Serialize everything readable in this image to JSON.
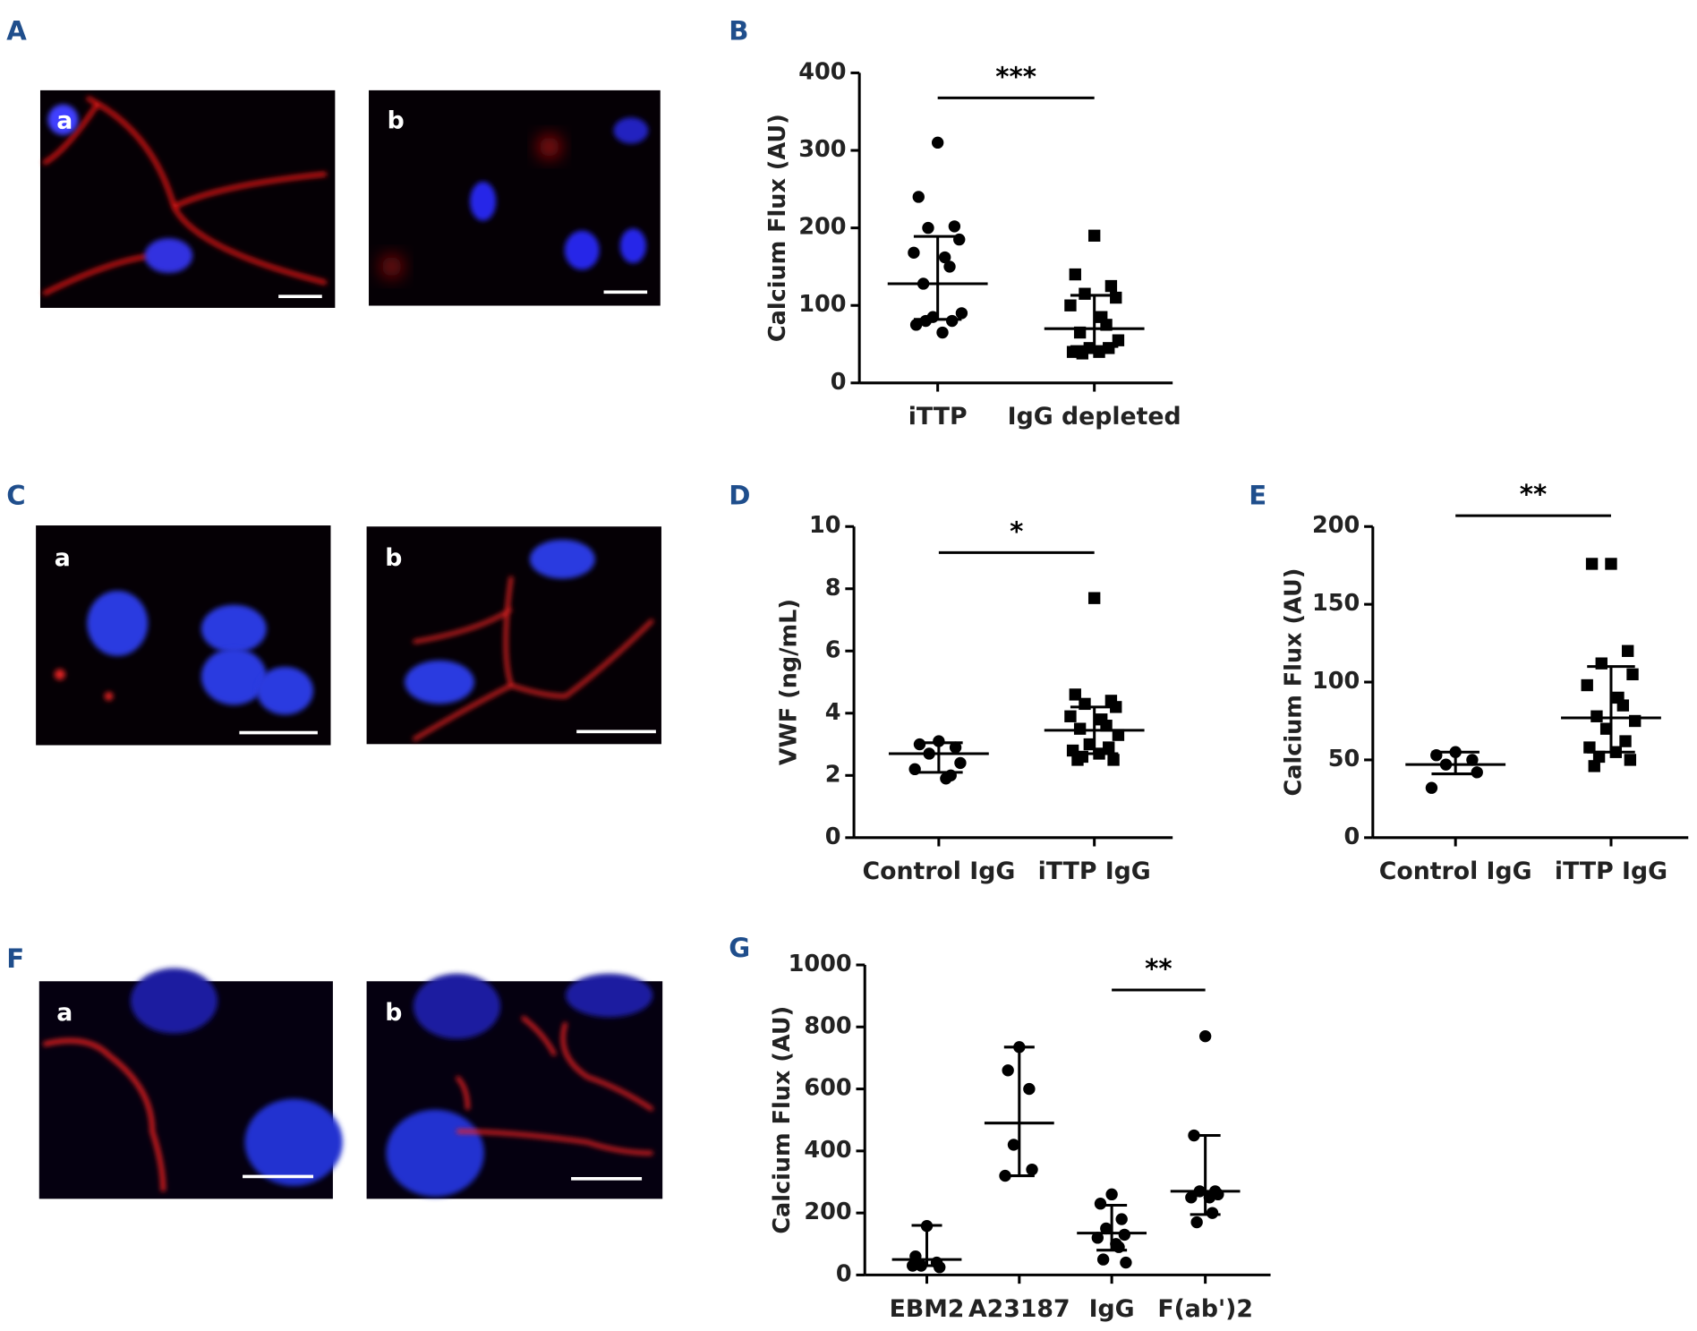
{
  "panels": {
    "letters": [
      "A",
      "B",
      "C",
      "D",
      "E",
      "F",
      "G"
    ],
    "image_labels": [
      [
        "a",
        "b"
      ],
      [
        "a",
        "b"
      ],
      [
        "a",
        "b"
      ]
    ]
  },
  "chart_data": [
    {
      "type": "dot",
      "ylabel": "Calcium Flux (AU)",
      "ylim": [
        0,
        400
      ],
      "yticks": [
        0,
        100,
        200,
        300,
        400
      ],
      "significance": {
        "text": "***",
        "between": [
          "iTTP",
          "IgG depleted"
        ]
      },
      "groups": [
        {
          "name": "iTTP",
          "marker": "circle",
          "color": "#000000",
          "values": [
            310,
            240,
            202,
            200,
            185,
            168,
            162,
            150,
            128,
            90,
            85,
            80,
            75,
            65,
            80
          ],
          "center": 128,
          "upper": 189,
          "lower": 82
        },
        {
          "name": "IgG depleted",
          "marker": "square",
          "color": "#000000",
          "values": [
            190,
            140,
            125,
            115,
            110,
            100,
            85,
            75,
            65,
            55,
            45,
            45,
            40,
            40,
            38
          ],
          "center": 70,
          "upper": 113,
          "lower": 47
        }
      ]
    },
    {
      "type": "dot",
      "ylabel": "VWF (ng/mL)",
      "ylim": [
        0,
        10
      ],
      "yticks": [
        0,
        2,
        4,
        6,
        8,
        10
      ],
      "significance": {
        "text": "*",
        "between": [
          "Control IgG",
          "iTTP IgG"
        ]
      },
      "groups": [
        {
          "name": "Control IgG",
          "marker": "circle",
          "color": "#000000",
          "values": [
            3.1,
            3.0,
            2.9,
            2.7,
            2.4,
            2.2,
            1.9,
            2.0
          ],
          "center": 2.7,
          "upper": 3.05,
          "lower": 2.1
        },
        {
          "name": "iTTP IgG",
          "marker": "square",
          "color": "#000000",
          "values": [
            7.7,
            4.6,
            4.4,
            4.3,
            4.2,
            3.9,
            3.8,
            3.6,
            3.5,
            3.3,
            3.0,
            2.9,
            2.8,
            2.7,
            2.6,
            2.5,
            2.5
          ],
          "center": 3.45,
          "upper": 4.2,
          "lower": 2.7
        }
      ]
    },
    {
      "type": "dot",
      "ylabel": "Calcium Flux (AU)",
      "ylim": [
        0,
        200
      ],
      "yticks": [
        0,
        50,
        100,
        150,
        200
      ],
      "significance": {
        "text": "**",
        "between": [
          "Control IgG",
          "iTTP IgG"
        ]
      },
      "groups": [
        {
          "name": "Control IgG",
          "marker": "circle",
          "color": "#000000",
          "values": [
            55,
            53,
            50,
            47,
            42,
            32
          ],
          "center": 47,
          "upper": 55,
          "lower": 41
        },
        {
          "name": "iTTP IgG",
          "marker": "square",
          "color": "#000000",
          "values": [
            176,
            176,
            120,
            112,
            105,
            98,
            90,
            85,
            78,
            75,
            70,
            62,
            58,
            55,
            52,
            50,
            46
          ],
          "center": 77,
          "upper": 110,
          "lower": 55
        }
      ]
    },
    {
      "type": "dot",
      "ylabel": "Calcium Flux (AU)",
      "ylim": [
        0,
        1000
      ],
      "yticks": [
        0,
        200,
        400,
        600,
        800,
        1000
      ],
      "significance": {
        "text": "**",
        "between": [
          "IgG",
          "F(ab')2"
        ]
      },
      "groups": [
        {
          "name": "EBM2",
          "marker": "circle",
          "color": "#000000",
          "values": [
            158,
            60,
            40,
            30,
            25,
            30
          ],
          "center": 50,
          "upper": 160,
          "lower": 30
        },
        {
          "name": "A23187",
          "marker": "circle",
          "color": "#000000",
          "values": [
            735,
            660,
            600,
            420,
            340,
            320
          ],
          "center": 490,
          "upper": 735,
          "lower": 320
        },
        {
          "name": "IgG",
          "marker": "circle",
          "color": "#000000",
          "values": [
            260,
            230,
            180,
            150,
            130,
            120,
            100,
            90,
            50,
            40
          ],
          "center": 135,
          "upper": 225,
          "lower": 80
        },
        {
          "name": "F(ab')2",
          "marker": "circle",
          "color": "#000000",
          "values": [
            770,
            450,
            270,
            270,
            260,
            250,
            250,
            200,
            170
          ],
          "center": 270,
          "upper": 450,
          "lower": 195
        }
      ]
    }
  ]
}
